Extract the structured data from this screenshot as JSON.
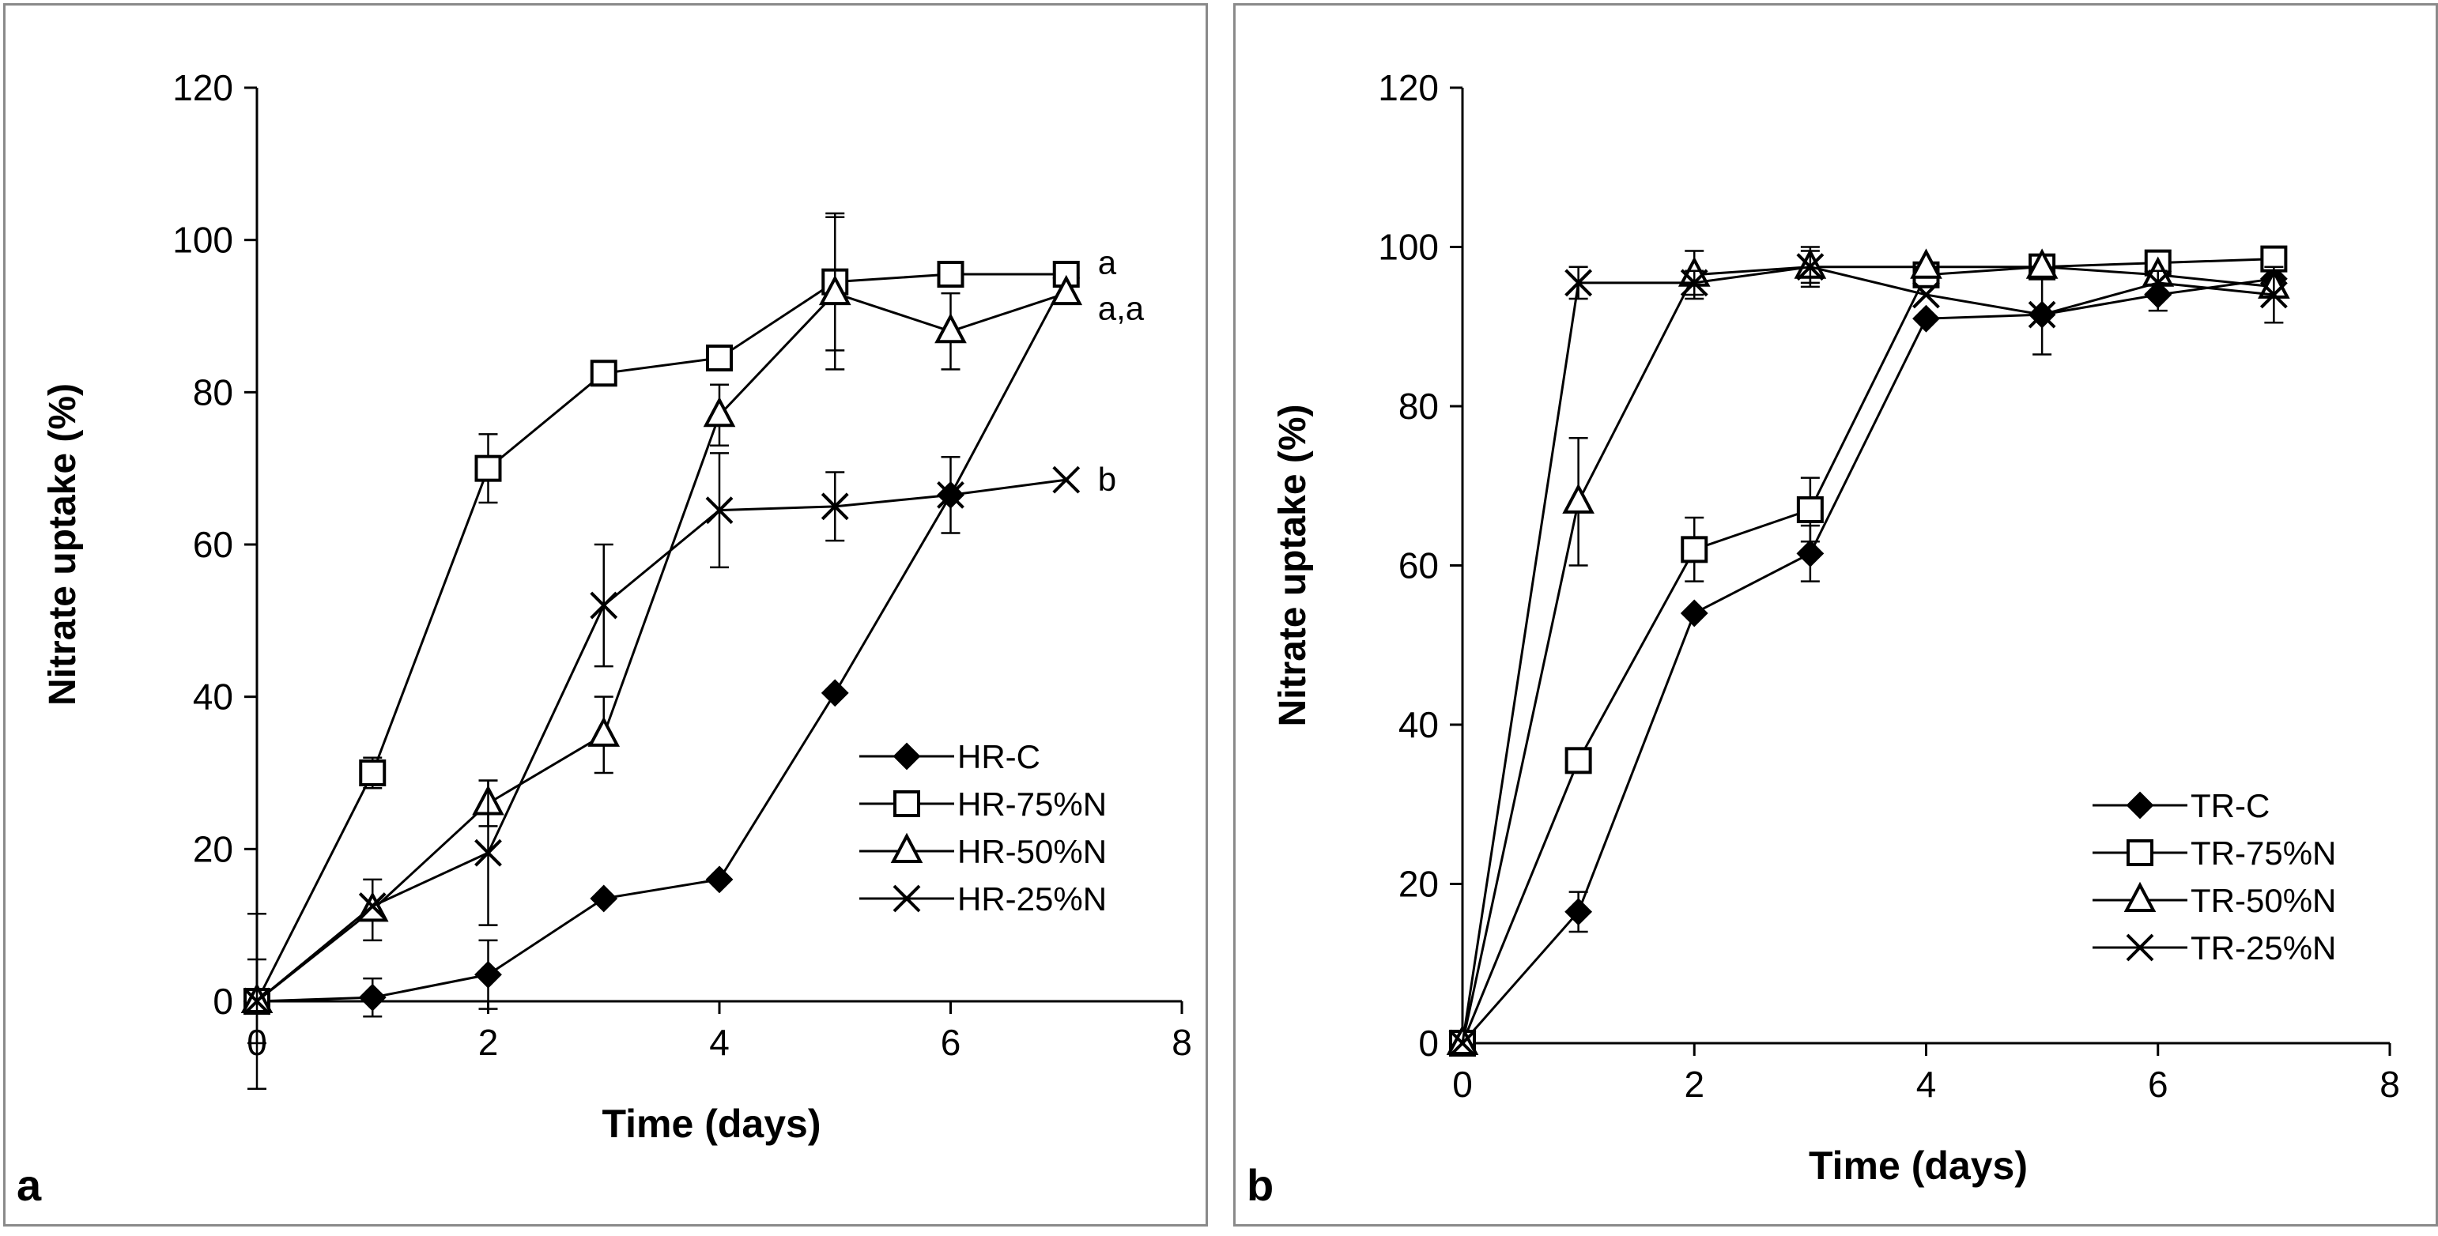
{
  "chart_data": [
    {
      "type": "line",
      "panel_label": "a",
      "title": "",
      "xlabel": "Time (days)",
      "ylabel": "Nitrate uptake (%)",
      "xlim": [
        0,
        8
      ],
      "ylim": [
        0,
        120
      ],
      "xticks": [
        0,
        2,
        4,
        6,
        8
      ],
      "yticks": [
        0,
        20,
        40,
        60,
        80,
        100,
        120
      ],
      "x": [
        0,
        1,
        2,
        3,
        4,
        5,
        6,
        7
      ],
      "legend_position": "bottom-right",
      "series": [
        {
          "name": "HR-C",
          "marker": "diamond",
          "values": [
            0,
            0.5,
            3.5,
            13.5,
            16,
            40.5,
            66.5,
            95
          ],
          "errors": [
            0,
            2.5,
            4.5,
            0,
            0,
            0,
            0,
            0
          ]
        },
        {
          "name": "HR-75%N",
          "marker": "square",
          "values": [
            0,
            30,
            70,
            82.5,
            84.5,
            94.5,
            95.5,
            95.5
          ],
          "errors": [
            0,
            2,
            4.5,
            0,
            0,
            9,
            0,
            0
          ]
        },
        {
          "name": "HR-50%N",
          "marker": "triangle",
          "values": [
            0,
            12,
            26,
            35,
            77,
            93,
            88,
            93
          ],
          "errors": [
            5.5,
            4,
            3,
            5,
            4,
            10,
            5,
            0
          ]
        },
        {
          "name": "HR-25%N",
          "marker": "x",
          "values": [
            0,
            12.5,
            19.5,
            52,
            64.5,
            65,
            66.5,
            68.5
          ],
          "errors": [
            11.5,
            0,
            9.5,
            8,
            7.5,
            4.5,
            5,
            0
          ]
        }
      ],
      "annotations": [
        {
          "text": "a",
          "x": 7,
          "y": 97
        },
        {
          "text": "a,a",
          "x": 7,
          "y": 91
        },
        {
          "text": "b",
          "x": 7,
          "y": 68.5
        }
      ]
    },
    {
      "type": "line",
      "panel_label": "b",
      "title": "",
      "xlabel": "Time (days)",
      "ylabel": "Nitrate uptake (%)",
      "xlim": [
        0,
        8
      ],
      "ylim": [
        0,
        120
      ],
      "xticks": [
        0,
        2,
        4,
        6,
        8
      ],
      "yticks": [
        0,
        20,
        40,
        60,
        80,
        100,
        120
      ],
      "x": [
        0,
        1,
        2,
        3,
        4,
        5,
        6,
        7
      ],
      "legend_position": "bottom-right",
      "series": [
        {
          "name": "TR-C",
          "marker": "diamond",
          "values": [
            0,
            16.5,
            54,
            61.5,
            91,
            91.5,
            94,
            96
          ],
          "errors": [
            0,
            2.5,
            0,
            3.5,
            0,
            5,
            2,
            0
          ]
        },
        {
          "name": "TR-75%N",
          "marker": "square",
          "values": [
            0,
            35.5,
            62,
            67,
            96.5,
            97.5,
            98,
            98.5
          ],
          "errors": [
            0,
            0,
            4,
            4,
            0,
            0,
            0,
            0
          ]
        },
        {
          "name": "TR-50%N",
          "marker": "triangle",
          "values": [
            0,
            68,
            96.5,
            97.5,
            97.5,
            97.5,
            96.5,
            95
          ],
          "errors": [
            0,
            8,
            3,
            2,
            0,
            0,
            0,
            0
          ]
        },
        {
          "name": "TR-25%N",
          "marker": "x",
          "values": [
            0,
            95.5,
            95.5,
            97.5,
            94,
            91.5,
            95.5,
            94
          ],
          "errors": [
            0,
            2,
            1.5,
            2.5,
            0,
            0,
            1.5,
            3.5
          ]
        }
      ]
    }
  ]
}
